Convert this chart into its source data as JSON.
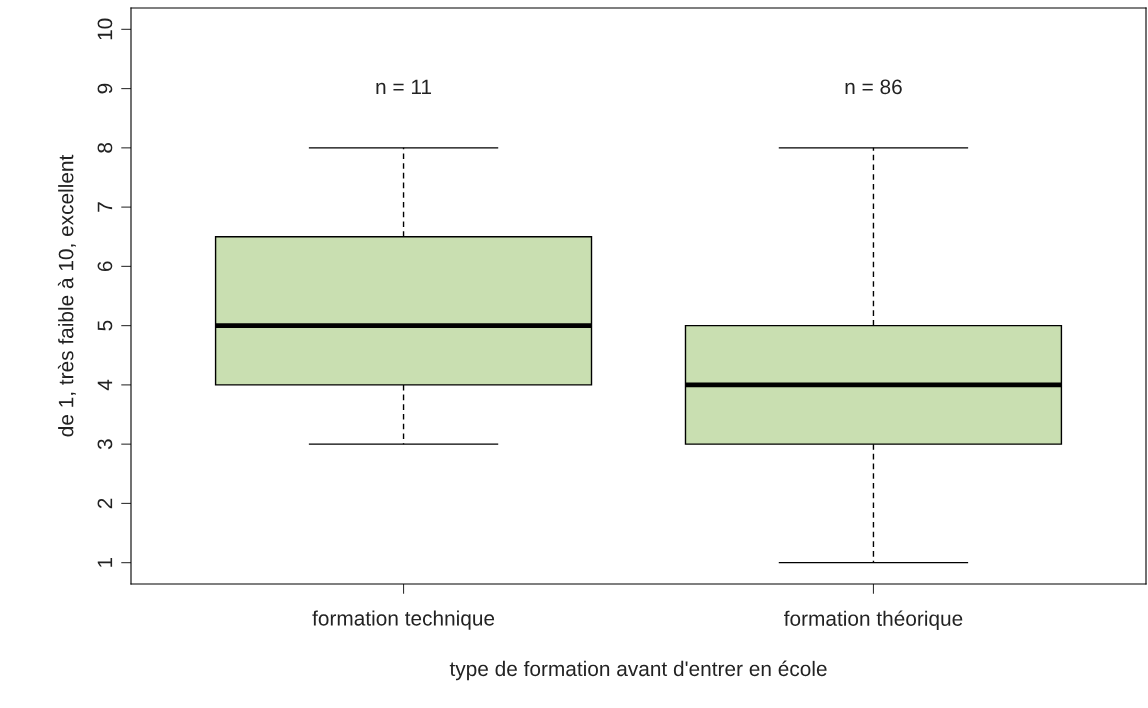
{
  "chart_data": {
    "type": "box",
    "xlabel": "type de formation avant d'entrer en école",
    "ylabel": "de 1, très faible à 10, excellent",
    "categories": [
      "formation technique",
      "formation théorique"
    ],
    "boxes": [
      {
        "low": 3,
        "q1": 4,
        "median": 5,
        "q3": 6.5,
        "high": 8
      },
      {
        "low": 1,
        "q1": 3,
        "median": 4,
        "q3": 5,
        "high": 8
      }
    ],
    "color": "#c9dfb1",
    "ylim": [
      0.64,
      10.36
    ],
    "yticks": [
      1,
      2,
      3,
      4,
      5,
      6,
      7,
      8,
      9,
      10
    ],
    "grid": false,
    "legend": false,
    "annotations": [
      "n = 11",
      "n = 86"
    ]
  }
}
